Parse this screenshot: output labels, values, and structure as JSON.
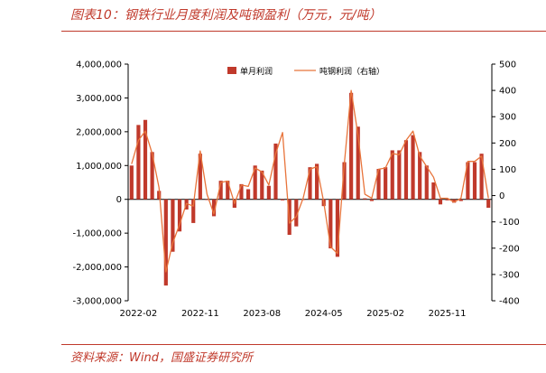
{
  "header": {
    "title": "图表10：钢铁行业月度利润及吨钢盈利（万元，元/吨）"
  },
  "footer": {
    "source": "资料来源：Wind，国盛证券研究所"
  },
  "chart_data": {
    "type": "bar+line",
    "x": [
      "2022-01",
      "2022-02",
      "2022-03",
      "2022-04",
      "2022-05",
      "2022-06",
      "2022-07",
      "2022-08",
      "2022-09",
      "2022-10",
      "2022-11",
      "2022-12",
      "2023-01",
      "2023-02",
      "2023-03",
      "2023-04",
      "2023-05",
      "2023-06",
      "2023-07",
      "2023-08",
      "2023-09",
      "2023-10",
      "2023-11",
      "2023-12",
      "2024-01",
      "2024-02",
      "2024-03",
      "2024-04",
      "2024-05",
      "2024-06",
      "2024-07",
      "2024-08",
      "2024-09",
      "2024-10",
      "2024-11",
      "2024-12",
      "2025-01",
      "2025-02",
      "2025-03",
      "2025-04",
      "2025-05",
      "2025-06",
      "2025-07",
      "2025-08",
      "2025-09",
      "2025-10",
      "2025-11",
      "2025-12",
      "2026-01",
      "2026-02",
      "2026-03",
      "2026-04",
      "2026-05"
    ],
    "xticks": [
      "2022-02",
      "2022-11",
      "2023-08",
      "2024-05",
      "2025-02",
      "2025-11"
    ],
    "series": [
      {
        "name": "单月利润",
        "axis": "left",
        "type": "bar",
        "color": "#c0392b",
        "values": [
          1000000,
          2200000,
          2350000,
          1400000,
          250000,
          -2550000,
          -1550000,
          -950000,
          -300000,
          -700000,
          1350000,
          -20000,
          -500000,
          550000,
          550000,
          -250000,
          450000,
          300000,
          1000000,
          850000,
          400000,
          1650000,
          -30000,
          -1050000,
          -800000,
          -20000,
          950000,
          1050000,
          -200000,
          -1450000,
          -1700000,
          1100000,
          3150000,
          2150000,
          30000,
          -50000,
          900000,
          950000,
          1450000,
          1450000,
          1750000,
          1900000,
          1400000,
          1000000,
          500000,
          -150000,
          -30000,
          -100000,
          -50000,
          1100000,
          1100000,
          1350000,
          -250000
        ]
      },
      {
        "name": "吨钢利润（右轴）",
        "axis": "right",
        "type": "line",
        "color": "#e8743b",
        "values": [
          120,
          210,
          245,
          160,
          30,
          -290,
          -180,
          -110,
          -30,
          -40,
          170,
          5,
          -70,
          50,
          55,
          -30,
          40,
          35,
          105,
          90,
          40,
          160,
          240,
          -105,
          -80,
          -10,
          100,
          110,
          -25,
          -195,
          -220,
          120,
          400,
          230,
          5,
          -10,
          100,
          105,
          160,
          155,
          210,
          245,
          150,
          110,
          70,
          -10,
          -10,
          -25,
          -10,
          130,
          130,
          150,
          -10
        ]
      }
    ],
    "yleft": {
      "min": -3000000,
      "max": 4000000,
      "ticks": [
        "4,000,000",
        "3,000,000",
        "2,000,000",
        "1,000,000",
        "0",
        "-1,000,000",
        "-2,000,000",
        "-3,000,000"
      ]
    },
    "yright": {
      "min": -400,
      "max": 500,
      "ticks": [
        "500",
        "400",
        "300",
        "200",
        "100",
        "0",
        "-100",
        "-200",
        "-300",
        "-400"
      ]
    },
    "legend": {
      "placement": "top-center"
    }
  }
}
